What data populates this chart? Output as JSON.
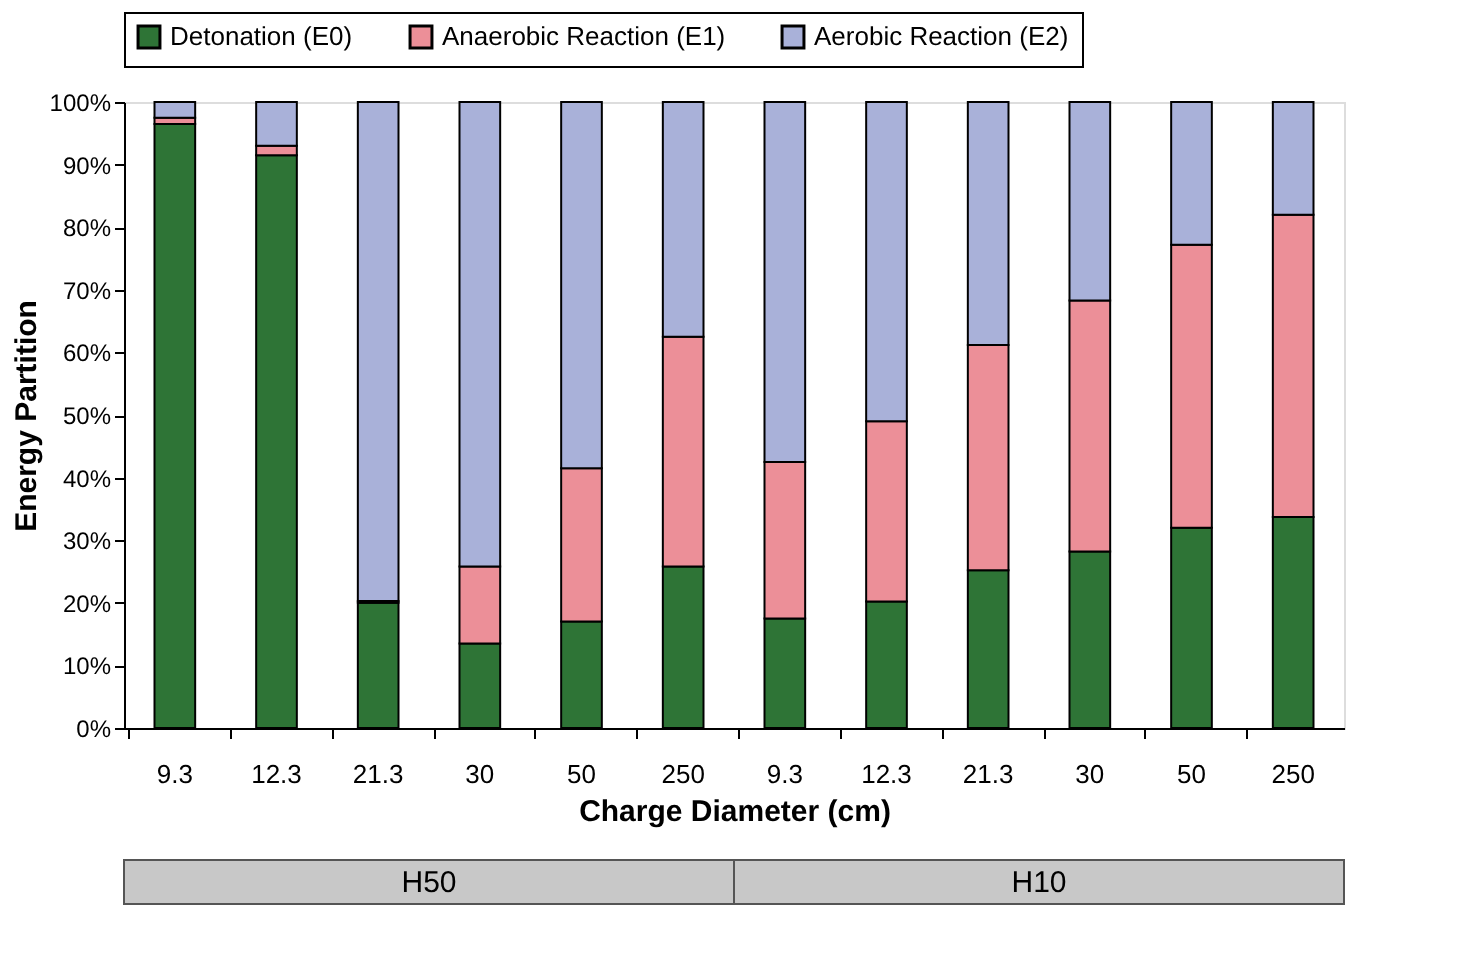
{
  "chart_data": {
    "type": "bar",
    "stacked": true,
    "xlabel": "Charge Diameter (cm)",
    "ylabel": "Energy Partition",
    "categories": [
      "9.3",
      "12.3",
      "21.3",
      "30",
      "50",
      "250",
      "9.3",
      "12.3",
      "21.3",
      "30",
      "50",
      "250"
    ],
    "series": [
      {
        "name": "Detonation (E0)",
        "color": "#2e7436",
        "values": [
          96.5,
          91.5,
          20,
          13.5,
          17,
          25.8,
          17.5,
          20.2,
          25.2,
          28.2,
          32,
          33.7
        ]
      },
      {
        "name": "Anaerobic Reaction (E1)",
        "color": "#ec8f98",
        "values": [
          1,
          1.5,
          0.3,
          12.3,
          24.5,
          36.7,
          25,
          28.8,
          36,
          40.1,
          45.2,
          48.3
        ]
      },
      {
        "name": "Aerobic Reaction (E2)",
        "color": "#a9b1d9",
        "values": [
          2.5,
          7,
          79.7,
          74.2,
          58.5,
          37.5,
          57.5,
          51,
          38.8,
          31.7,
          22.8,
          18
        ]
      }
    ],
    "ylim": [
      0,
      100
    ],
    "yticks": [
      {
        "value": 0,
        "label": "0%"
      },
      {
        "value": 10,
        "label": "10%"
      },
      {
        "value": 20,
        "label": "20%"
      },
      {
        "value": 30,
        "label": "30%"
      },
      {
        "value": 40,
        "label": "40%"
      },
      {
        "value": 50,
        "label": "50%"
      },
      {
        "value": 60,
        "label": "60%"
      },
      {
        "value": 70,
        "label": "70%"
      },
      {
        "value": 80,
        "label": "80%"
      },
      {
        "value": 90,
        "label": "90%"
      },
      {
        "value": 100,
        "label": "100%"
      }
    ],
    "grid": false,
    "legend": "top",
    "annotations": [
      "H50",
      "H10"
    ]
  }
}
